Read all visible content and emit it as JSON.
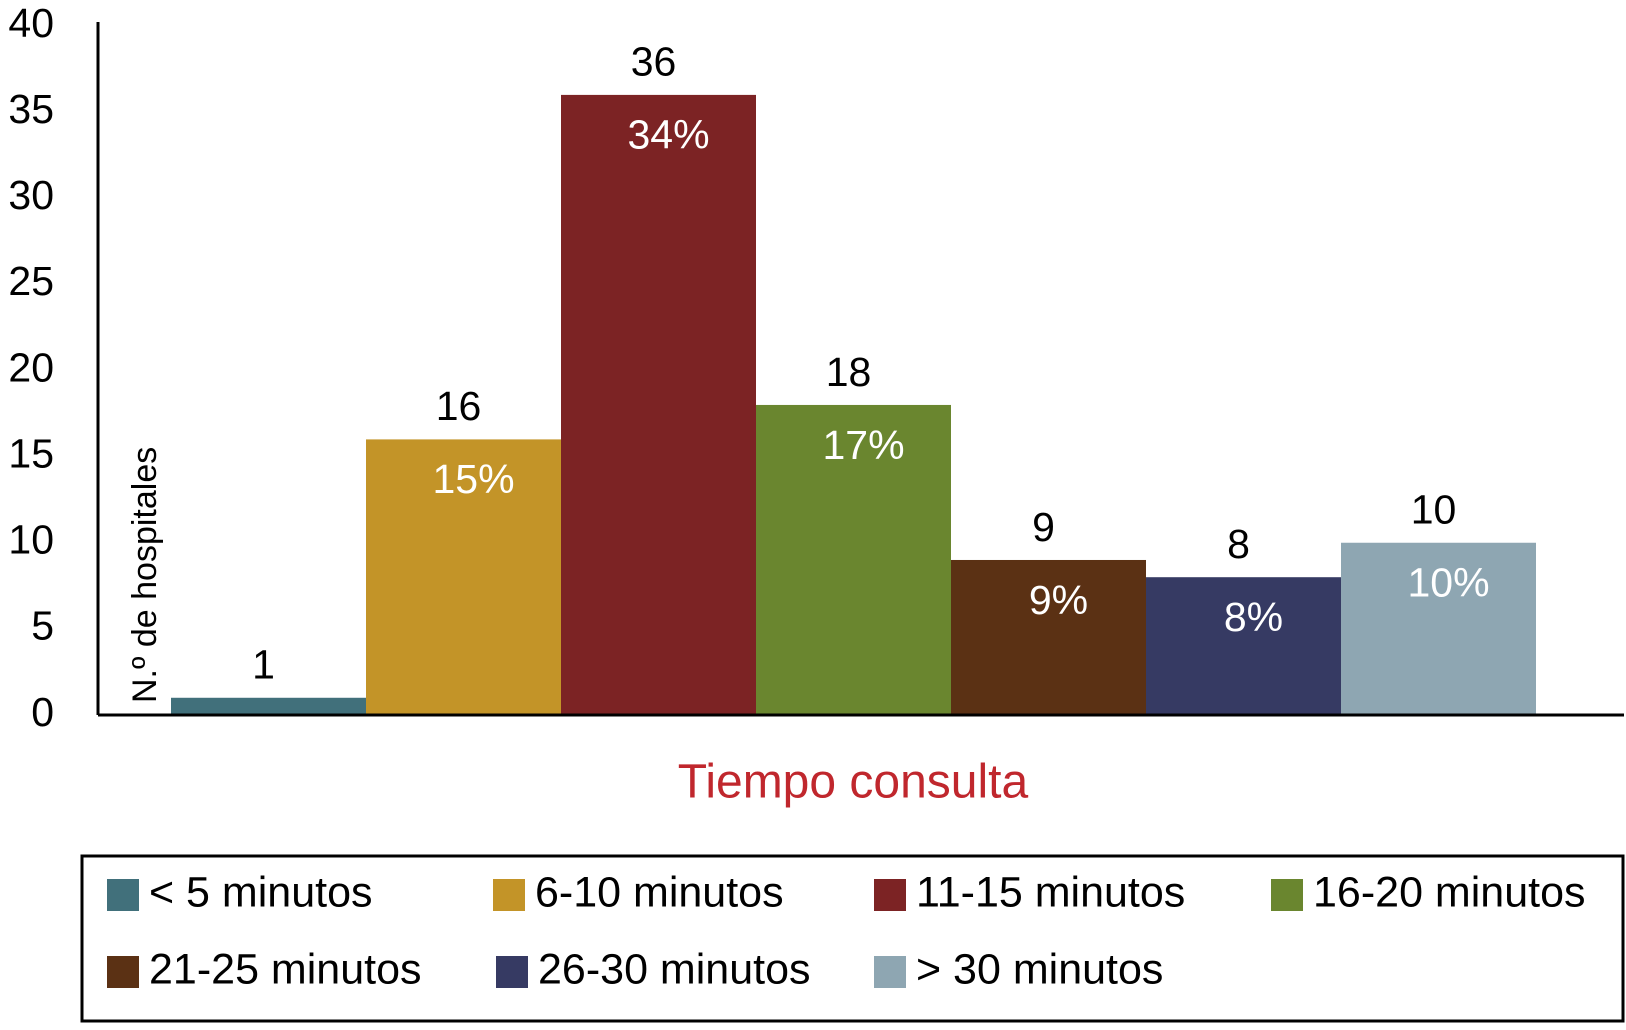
{
  "chart_data": {
    "type": "bar",
    "y_label": "N.º de hospitales",
    "x_label": "Tiempo consulta",
    "categories": [
      "< 5 minutos",
      "6-10 minutos",
      "11-15 minutos",
      "16-20 minutos",
      "21-25 minutos",
      "26-30 minutos",
      "> 30 minutos"
    ],
    "values": [
      1,
      16,
      36,
      18,
      9,
      8,
      10
    ],
    "colors": [
      "#41707b",
      "#c39428",
      "#7c2324",
      "#6a862f",
      "#5b3114",
      "#363a63",
      "#8ea6b2"
    ],
    "shares": {
      "values": [
        null,
        15,
        34,
        17,
        9,
        8,
        10
      ],
      "value_labels": [
        null,
        "15%",
        "34%",
        "17%",
        "9%",
        "8%",
        "10%"
      ]
    },
    "ylim": [
      0,
      40
    ],
    "yticks": [
      0,
      5,
      10,
      15,
      20,
      25,
      30,
      35,
      40
    ],
    "grid": false,
    "legend": "bottom"
  }
}
